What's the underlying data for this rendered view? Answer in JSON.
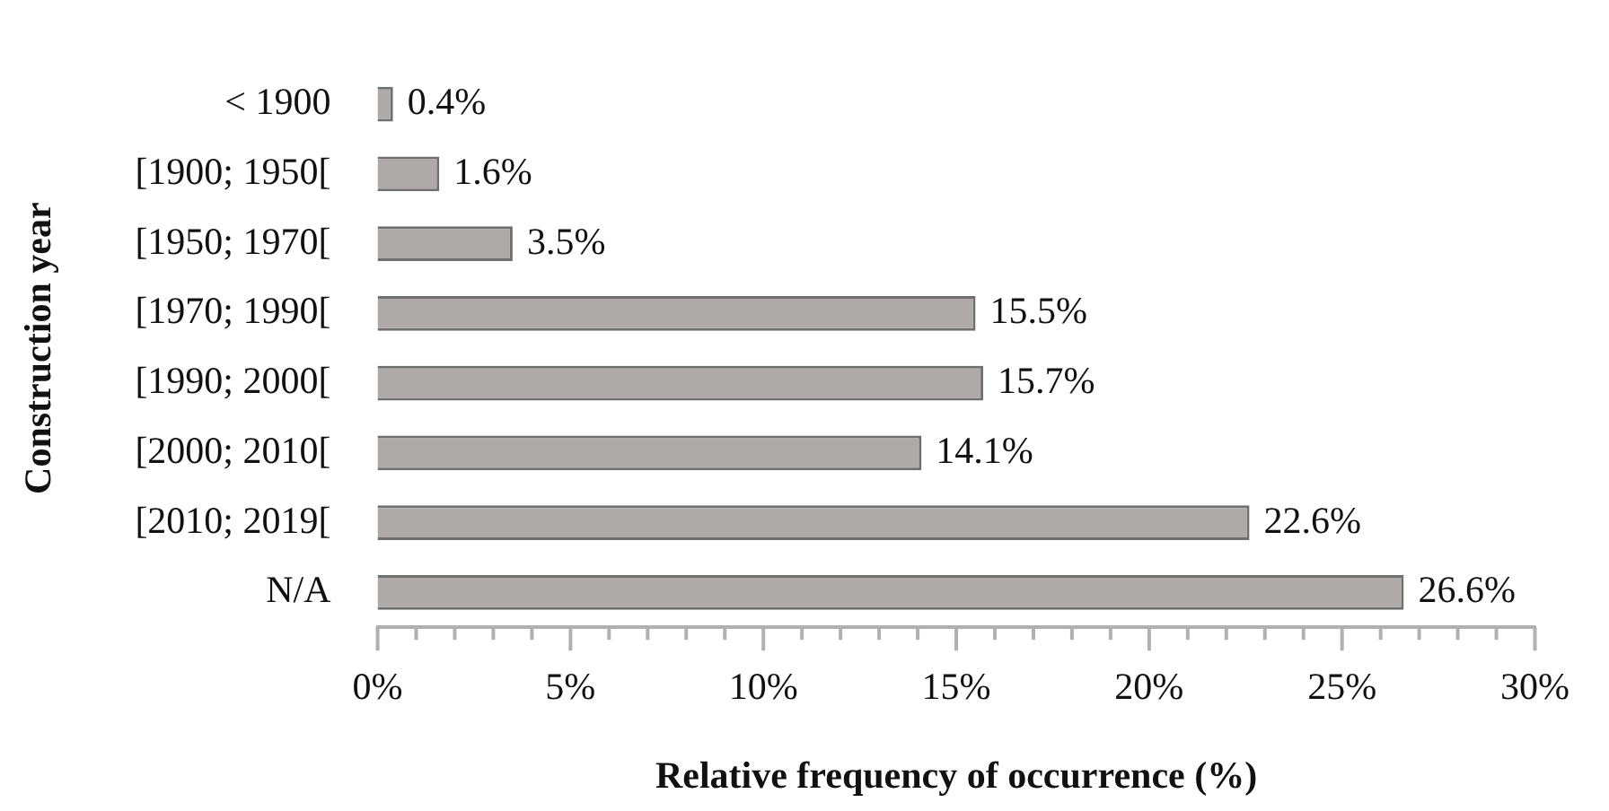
{
  "chart_data": {
    "type": "bar",
    "orientation": "horizontal",
    "xlabel": "Relative frequency of occurrence (%)",
    "ylabel": "Construction year",
    "categories": [
      "< 1900",
      "[1900; 1950[",
      "[1950; 1970[",
      "[1970; 1990[",
      "[1990; 2000[",
      "[2000; 2010[",
      "[2010; 2019[",
      "N/A"
    ],
    "values": [
      0.4,
      1.6,
      3.5,
      15.5,
      15.7,
      14.1,
      22.6,
      26.6
    ],
    "value_labels": [
      "0.4%",
      "1.6%",
      "3.5%",
      "15.5%",
      "15.7%",
      "14.1%",
      "22.6%",
      "26.6%"
    ],
    "color": "#aeaaaa",
    "xlim": [
      0,
      30
    ],
    "xticks": [
      {
        "value": 0,
        "label": "0%"
      },
      {
        "value": 1,
        "label": null
      },
      {
        "value": 2,
        "label": null
      },
      {
        "value": 3,
        "label": null
      },
      {
        "value": 4,
        "label": null
      },
      {
        "value": 5,
        "label": "5%"
      },
      {
        "value": 6,
        "label": null
      },
      {
        "value": 7,
        "label": null
      },
      {
        "value": 8,
        "label": null
      },
      {
        "value": 9,
        "label": null
      },
      {
        "value": 10,
        "label": "10%"
      },
      {
        "value": 11,
        "label": null
      },
      {
        "value": 12,
        "label": null
      },
      {
        "value": 13,
        "label": null
      },
      {
        "value": 14,
        "label": null
      },
      {
        "value": 15,
        "label": "15%"
      },
      {
        "value": 16,
        "label": null
      },
      {
        "value": 17,
        "label": null
      },
      {
        "value": 18,
        "label": null
      },
      {
        "value": 19,
        "label": null
      },
      {
        "value": 20,
        "label": "20%"
      },
      {
        "value": 21,
        "label": null
      },
      {
        "value": 22,
        "label": null
      },
      {
        "value": 23,
        "label": null
      },
      {
        "value": 24,
        "label": null
      },
      {
        "value": 25,
        "label": "25%"
      },
      {
        "value": 26,
        "label": null
      },
      {
        "value": 27,
        "label": null
      },
      {
        "value": 28,
        "label": null
      },
      {
        "value": 29,
        "label": null
      },
      {
        "value": 30,
        "label": "30%"
      }
    ],
    "grid": false,
    "legend": false
  }
}
